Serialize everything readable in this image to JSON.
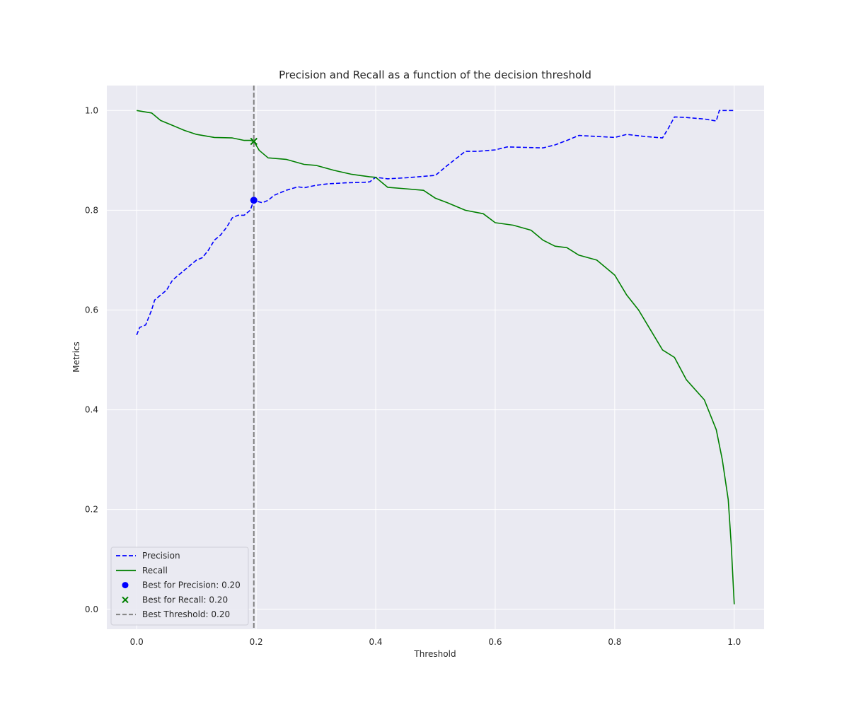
{
  "chart_data": {
    "type": "line",
    "title": "Precision and Recall as a function of the decision threshold",
    "xlabel": "Threshold",
    "ylabel": "Metrics",
    "xlim": [
      -0.05,
      1.05
    ],
    "ylim": [
      -0.04,
      1.05
    ],
    "x_ticks": [
      0.0,
      0.2,
      0.4,
      0.6,
      0.8,
      1.0
    ],
    "x_tick_labels": [
      "0.0",
      "0.2",
      "0.4",
      "0.6",
      "0.8",
      "1.0"
    ],
    "y_ticks": [
      0.0,
      0.2,
      0.4,
      0.6,
      0.8,
      1.0
    ],
    "y_tick_labels": [
      "0.0",
      "0.2",
      "0.4",
      "0.6",
      "0.8",
      "1.0"
    ],
    "grid": true,
    "legend_position": "lower-left",
    "series": [
      {
        "name": "Precision",
        "color": "#0000ff",
        "style": "dashed",
        "x": [
          0.0,
          0.005,
          0.015,
          0.025,
          0.03,
          0.04,
          0.05,
          0.06,
          0.07,
          0.08,
          0.09,
          0.1,
          0.11,
          0.12,
          0.13,
          0.14,
          0.15,
          0.16,
          0.17,
          0.18,
          0.19,
          0.196,
          0.21,
          0.22,
          0.23,
          0.25,
          0.27,
          0.28,
          0.3,
          0.32,
          0.35,
          0.38,
          0.39,
          0.4,
          0.42,
          0.45,
          0.48,
          0.5,
          0.52,
          0.55,
          0.57,
          0.6,
          0.62,
          0.65,
          0.68,
          0.7,
          0.72,
          0.74,
          0.77,
          0.8,
          0.82,
          0.85,
          0.88,
          0.89,
          0.9,
          0.92,
          0.95,
          0.97,
          0.975,
          1.0
        ],
        "y": [
          0.55,
          0.565,
          0.57,
          0.6,
          0.62,
          0.63,
          0.64,
          0.66,
          0.67,
          0.68,
          0.69,
          0.7,
          0.705,
          0.72,
          0.74,
          0.75,
          0.765,
          0.785,
          0.79,
          0.79,
          0.8,
          0.82,
          0.815,
          0.82,
          0.83,
          0.84,
          0.847,
          0.845,
          0.85,
          0.853,
          0.855,
          0.856,
          0.857,
          0.866,
          0.863,
          0.865,
          0.868,
          0.87,
          0.89,
          0.918,
          0.918,
          0.921,
          0.927,
          0.926,
          0.925,
          0.931,
          0.94,
          0.95,
          0.948,
          0.946,
          0.952,
          0.948,
          0.945,
          0.965,
          0.987,
          0.986,
          0.983,
          0.979,
          1.0,
          1.0
        ]
      },
      {
        "name": "Recall",
        "color": "#008000",
        "style": "solid",
        "x": [
          0.0,
          0.025,
          0.04,
          0.06,
          0.08,
          0.1,
          0.13,
          0.16,
          0.18,
          0.19,
          0.196,
          0.205,
          0.22,
          0.25,
          0.28,
          0.3,
          0.33,
          0.36,
          0.39,
          0.4,
          0.42,
          0.45,
          0.48,
          0.5,
          0.52,
          0.55,
          0.58,
          0.6,
          0.63,
          0.66,
          0.68,
          0.7,
          0.72,
          0.74,
          0.77,
          0.8,
          0.82,
          0.84,
          0.86,
          0.88,
          0.9,
          0.92,
          0.95,
          0.97,
          0.98,
          0.99,
          0.995,
          1.0
        ],
        "y": [
          1.0,
          0.995,
          0.98,
          0.97,
          0.96,
          0.952,
          0.946,
          0.945,
          0.94,
          0.94,
          0.938,
          0.92,
          0.905,
          0.902,
          0.892,
          0.89,
          0.88,
          0.872,
          0.867,
          0.866,
          0.846,
          0.843,
          0.84,
          0.824,
          0.815,
          0.8,
          0.793,
          0.775,
          0.77,
          0.76,
          0.74,
          0.728,
          0.725,
          0.71,
          0.7,
          0.67,
          0.63,
          0.6,
          0.56,
          0.52,
          0.505,
          0.46,
          0.42,
          0.36,
          0.3,
          0.22,
          0.13,
          0.01
        ]
      }
    ],
    "markers": [
      {
        "name": "Best for Precision: 0.20",
        "shape": "circle",
        "color": "#0000ff",
        "x": 0.196,
        "y": 0.82
      },
      {
        "name": "Best for Recall: 0.20",
        "shape": "x",
        "color": "#008000",
        "x": 0.196,
        "y": 0.938
      }
    ],
    "vline": {
      "name": "Best Threshold: 0.20",
      "x": 0.196,
      "color": "#808080",
      "style": "dashed"
    },
    "legend": [
      {
        "label": "Precision",
        "kind": "line-dashed",
        "color": "#0000ff"
      },
      {
        "label": "Recall",
        "kind": "line-solid",
        "color": "#008000"
      },
      {
        "label": "Best for Precision: 0.20",
        "kind": "circle",
        "color": "#0000ff"
      },
      {
        "label": "Best for Recall: 0.20",
        "kind": "x",
        "color": "#008000"
      },
      {
        "label": "Best Threshold: 0.20",
        "kind": "line-dashed",
        "color": "#808080"
      }
    ]
  }
}
